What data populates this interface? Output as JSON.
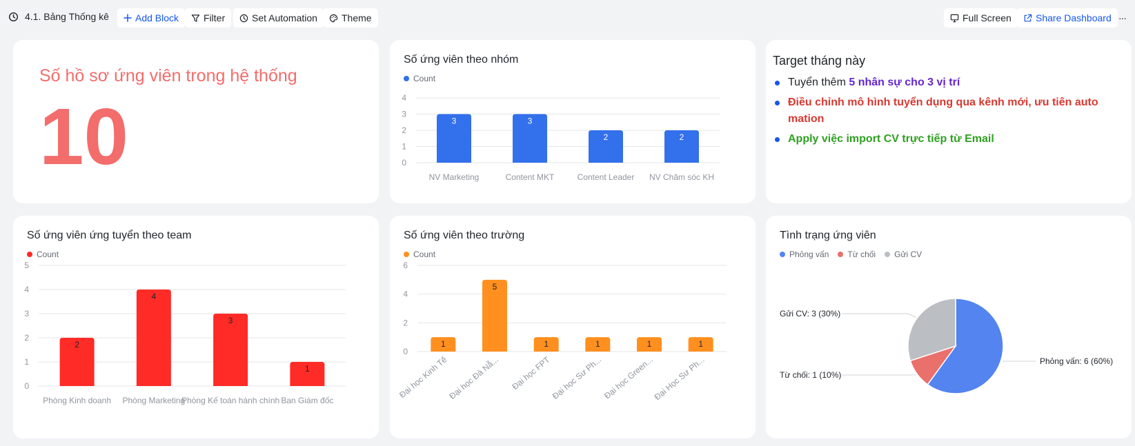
{
  "toolbar": {
    "title": "4.1. Bảng Thống kê",
    "add_block": "Add Block",
    "filter": "Filter",
    "set_automation": "Set Automation",
    "theme": "Theme",
    "full_screen": "Full Screen",
    "share_dashboard": "Share Dashboard",
    "more": "···"
  },
  "stat_card": {
    "title": "Số hồ sơ ứng viên trong hệ thống",
    "value": "10"
  },
  "target_card": {
    "title": "Target tháng này",
    "items": [
      {
        "prefix": "Tuyển thêm ",
        "highlight": "5 nhân sự cho 3 vị trí"
      },
      {
        "prefix": "",
        "highlight": "Điều chỉnh mô hình tuyển dụng qua kênh mới, ưu tiên auto mation"
      },
      {
        "prefix": "",
        "highlight": "Apply việc import CV trực tiếp từ Email"
      }
    ]
  },
  "colors": {
    "blue_bar": "#3370eb",
    "red_bar": "#ff2b26",
    "orange_bar": "#ff8f1f",
    "pie_interview": "#5384ef",
    "pie_reject": "#e9706b",
    "pie_sent": "#bbbfc4",
    "accent": "#1456f0"
  },
  "chart_data": [
    {
      "type": "bar",
      "title": "Số ứng viên theo nhóm",
      "legend": "Count",
      "categories": [
        "NV Marketing",
        "Content MKT",
        "Content Leader",
        "NV Chăm sóc KH"
      ],
      "values": [
        3,
        3,
        2,
        2
      ],
      "ylim": [
        0,
        4
      ],
      "yticks": [
        "0",
        "1",
        "2",
        "3",
        "4"
      ],
      "grid": true
    },
    {
      "type": "bar",
      "title": "Số ứng viên ứng tuyển theo team",
      "legend": "Count",
      "categories": [
        "Phòng Kinh doanh",
        "Phòng Marketing",
        "Phòng Kế toán hành chính",
        "Ban Giám đốc"
      ],
      "values": [
        2,
        4,
        3,
        1
      ],
      "ylim": [
        0,
        5
      ],
      "yticks": [
        "0",
        "1",
        "2",
        "3",
        "4",
        "5"
      ],
      "grid": true
    },
    {
      "type": "bar",
      "title": "Số ứng viên theo trường",
      "legend": "Count",
      "categories": [
        "Đại học Kinh Tế",
        "Đại học Đà Nẵ...",
        "Đại học FPT",
        "Đại học Sư Ph...",
        "Đại học Green...",
        "Đại Học Sư Ph..."
      ],
      "values": [
        1,
        5,
        1,
        1,
        1,
        1
      ],
      "ylim": [
        0,
        6
      ],
      "yticks": [
        "0",
        "2",
        "4",
        "6"
      ],
      "grid": true
    },
    {
      "type": "pie",
      "title": "Tình trạng ứng viên",
      "legend": [
        "Phỏng vấn",
        "Từ chối",
        "Gửi CV"
      ],
      "slices": [
        {
          "name": "Phỏng vấn",
          "value": 6,
          "label": "Phỏng vấn: 6 (60%)"
        },
        {
          "name": "Từ chối",
          "value": 1,
          "label": "Từ chối: 1 (10%)"
        },
        {
          "name": "Gửi CV",
          "value": 3,
          "label": "Gửi CV: 3 (30%)"
        }
      ]
    }
  ]
}
